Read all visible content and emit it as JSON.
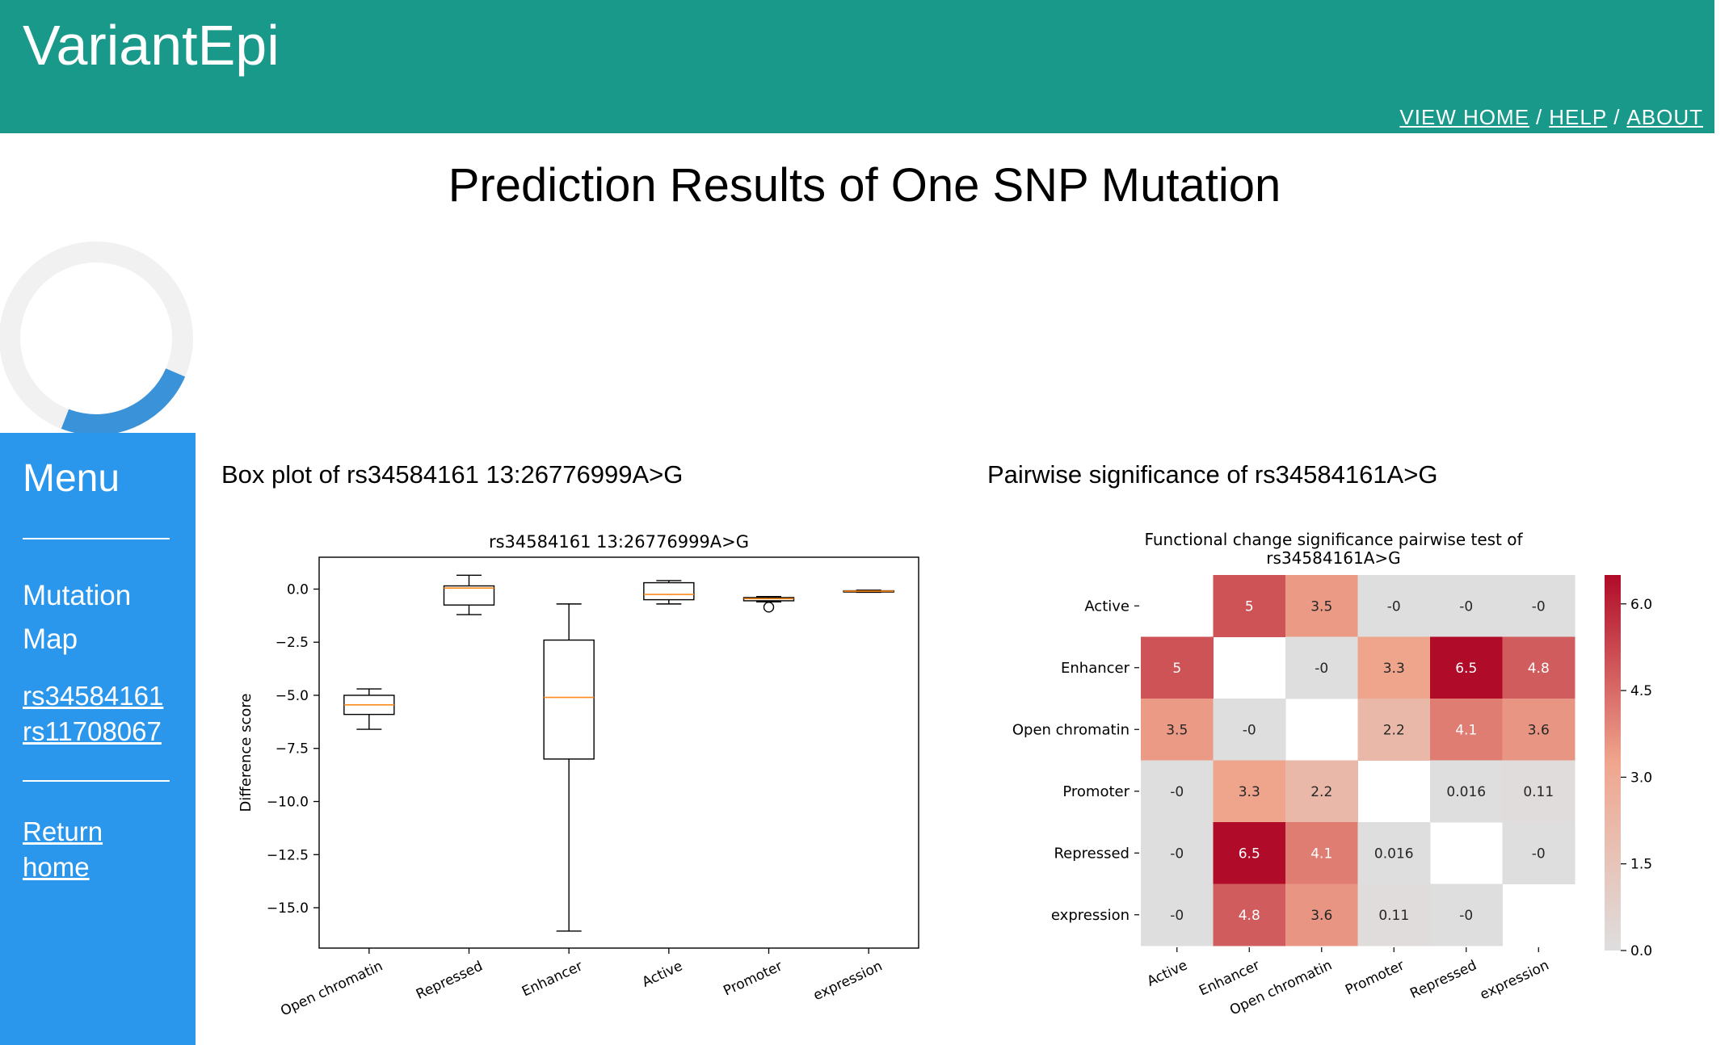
{
  "app": {
    "title": "VariantEpi"
  },
  "topnav": {
    "items": [
      "VIEW HOME",
      "HELP",
      "ABOUT"
    ],
    "separator": "/"
  },
  "page": {
    "title": "Prediction Results of One SNP Mutation"
  },
  "sidebar": {
    "menu_title": "Menu",
    "mutation_map_line1": "Mutation",
    "mutation_map_line2": "Map",
    "links": [
      "rs34584161",
      "rs11708067"
    ],
    "return_line1": "Return",
    "return_line2": "home"
  },
  "colors": {
    "header_bg": "#18998a",
    "sidebar_bg": "#2b97ec",
    "spinner_track": "#f1f1f1",
    "spinner_arc": "#3a92d9"
  },
  "boxplot_section": {
    "title": "Box plot of rs34584161 13:26776999A>G"
  },
  "heatmap_section": {
    "title": "Pairwise significance of rs34584161A>G"
  },
  "chart_data": [
    {
      "type": "box",
      "title": "rs34584161 13:26776999A>G",
      "xlabel": "",
      "ylabel": "Difference score",
      "ylim": [
        -16.9,
        1.5
      ],
      "yticks": [
        0.0,
        -2.5,
        -5.0,
        -7.5,
        -10.0,
        -12.5,
        -15.0
      ],
      "categories": [
        "Open chromatin",
        "Repressed",
        "Enhancer",
        "Active",
        "Promoter",
        "expression"
      ],
      "boxes": [
        {
          "whislo": -6.6,
          "q1": -5.9,
          "med": -5.45,
          "q3": -5.0,
          "whishi": -4.7,
          "fliers": []
        },
        {
          "whislo": -1.2,
          "q1": -0.75,
          "med": 0.05,
          "q3": 0.15,
          "whishi": 0.65,
          "fliers": []
        },
        {
          "whislo": -16.1,
          "q1": -8.0,
          "med": -5.1,
          "q3": -2.4,
          "whishi": -0.7,
          "fliers": []
        },
        {
          "whislo": -0.7,
          "q1": -0.5,
          "med": -0.25,
          "q3": 0.3,
          "whishi": 0.4,
          "fliers": []
        },
        {
          "whislo": -0.6,
          "q1": -0.55,
          "med": -0.45,
          "q3": -0.4,
          "whishi": -0.35,
          "fliers": [
            -0.85
          ]
        },
        {
          "whislo": -0.15,
          "q1": -0.12,
          "med": -0.1,
          "q3": -0.08,
          "whishi": -0.05,
          "fliers": []
        }
      ],
      "grid": false
    },
    {
      "type": "heatmap",
      "title": "Functional change significance pairwise test of rs34584161A>G",
      "rows": [
        "Active",
        "Enhancer",
        "Open chromatin",
        "Promoter",
        "Repressed",
        "expression"
      ],
      "cols": [
        "Active",
        "Enhancer",
        "Open chromatin",
        "Promoter",
        "Repressed",
        "expression"
      ],
      "values": [
        [
          null,
          5,
          3.5,
          0,
          0,
          0
        ],
        [
          5,
          null,
          0,
          3.3,
          6.5,
          4.8
        ],
        [
          3.5,
          0,
          null,
          2.2,
          4.1,
          3.6
        ],
        [
          0,
          3.3,
          2.2,
          null,
          0.016,
          0.11
        ],
        [
          0,
          6.5,
          4.1,
          0.016,
          null,
          0
        ],
        [
          0,
          4.8,
          3.6,
          0.11,
          0,
          null
        ]
      ],
      "labels": [
        [
          "",
          "5",
          "3.5",
          "-0",
          "-0",
          "-0"
        ],
        [
          "5",
          "",
          "-0",
          "3.3",
          "6.5",
          "4.8"
        ],
        [
          "3.5",
          "-0",
          "",
          "2.2",
          "4.1",
          "3.6"
        ],
        [
          "-0",
          "3.3",
          "2.2",
          "",
          "0.016",
          "0.11"
        ],
        [
          "-0",
          "6.5",
          "4.1",
          "0.016",
          "",
          "-0"
        ],
        [
          "-0",
          "4.8",
          "3.6",
          "0.11",
          "-0",
          ""
        ]
      ],
      "colorbar": {
        "min": 0.0,
        "max": 6.5,
        "ticks": [
          0.0,
          1.5,
          3.0,
          4.5,
          6.0
        ],
        "tick_labels": [
          "0.0",
          "1.5",
          "3.0",
          "4.5",
          "6.0"
        ]
      },
      "colormap": "light-grey to red"
    }
  ]
}
